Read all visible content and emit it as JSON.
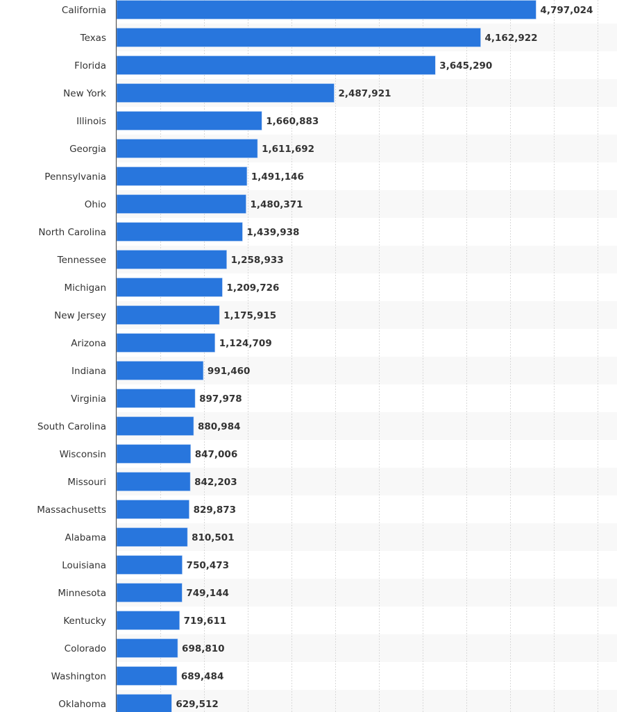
{
  "chart_data": {
    "type": "bar",
    "orientation": "horizontal",
    "categories": [
      "California",
      "Texas",
      "Florida",
      "New York",
      "Illinois",
      "Georgia",
      "Pennsylvania",
      "Ohio",
      "North Carolina",
      "Tennessee",
      "Michigan",
      "New Jersey",
      "Arizona",
      "Indiana",
      "Virginia",
      "South Carolina",
      "Wisconsin",
      "Missouri",
      "Massachusetts",
      "Alabama",
      "Louisiana",
      "Minnesota",
      "Kentucky",
      "Colorado",
      "Washington",
      "Oklahoma"
    ],
    "values": [
      4797024,
      4162922,
      3645290,
      2487921,
      1660883,
      1611692,
      1491146,
      1480371,
      1439938,
      1258933,
      1209726,
      1175915,
      1124709,
      991460,
      897978,
      880984,
      847006,
      842203,
      829873,
      810501,
      750473,
      749144,
      719611,
      698810,
      689484,
      629512
    ],
    "labels": [
      "4,797,024",
      "4,162,922",
      "3,645,290",
      "2,487,921",
      "1,660,883",
      "1,611,692",
      "1,491,146",
      "1,480,371",
      "1,439,938",
      "1,258,933",
      "1,209,726",
      "1,175,915",
      "1,124,709",
      "991,460",
      "897,978",
      "880,984",
      "847,006",
      "842,203",
      "829,873",
      "810,501",
      "750,473",
      "749,144",
      "719,611",
      "698,810",
      "689,484",
      "629,512"
    ],
    "xlim": [
      0,
      5500000
    ],
    "grid_step": 500000,
    "grid": true,
    "bar_color": "#2876dd",
    "band_color": "#f8f8f8"
  }
}
